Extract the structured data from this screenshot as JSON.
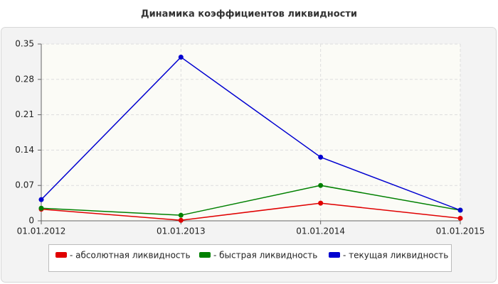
{
  "chart_data": {
    "type": "line",
    "title": "Динамика коэффициентов ликвидности",
    "categories": [
      "01.01.2012",
      "01.01.2013",
      "01.01.2014",
      "01.01.2015"
    ],
    "series": [
      {
        "name": "- абсолютная ликвидность",
        "color": "#e00000",
        "values": [
          0.023,
          0.001,
          0.035,
          0.005
        ]
      },
      {
        "name": "- быстрая ликвидность",
        "color": "#008000",
        "values": [
          0.025,
          0.011,
          0.07,
          0.021
        ]
      },
      {
        "name": "- текущая ликвидность",
        "color": "#0000d0",
        "values": [
          0.042,
          0.324,
          0.126,
          0.021
        ]
      }
    ],
    "ylim": [
      0,
      0.35
    ],
    "yticks": [
      0,
      0.07,
      0.14,
      0.21,
      0.28,
      0.35
    ],
    "grid": true
  }
}
